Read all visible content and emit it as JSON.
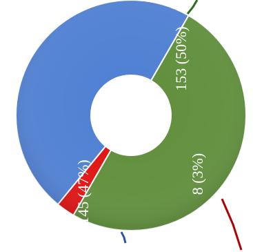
{
  "chart_data": {
    "type": "pie",
    "donut": true,
    "title": "",
    "slices": [
      {
        "value": 153,
        "percent": 50,
        "label": "153 (50%)",
        "color": "#5f8e3a"
      },
      {
        "value": 8,
        "percent": 3,
        "label": "8 (3%)",
        "color": "#e01010"
      },
      {
        "value": 145,
        "percent": 47,
        "label": "145 (47%)",
        "color": "#4e7fd2"
      }
    ],
    "legend": "none",
    "leader_line_colors": [
      "#2f6b1c",
      "#b00000",
      "#2a55a6"
    ]
  }
}
